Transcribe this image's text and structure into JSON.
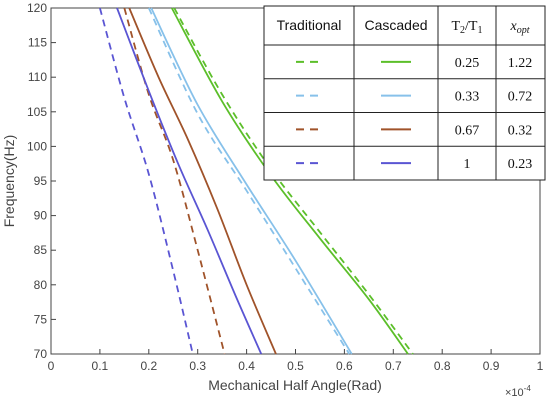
{
  "chart_data": {
    "type": "line",
    "xlabel": "Mechanical Half Angle(Rad)",
    "ylabel": "Frequency(Hz)",
    "x_multiplier": "×10",
    "x_multiplier_exp": "-4",
    "xlim": [
      0,
      1
    ],
    "ylim": [
      70,
      120
    ],
    "x_ticks": [
      "0",
      "0.1",
      "0.2",
      "0.3",
      "0.4",
      "0.5",
      "0.6",
      "0.7",
      "0.8",
      "0.9",
      "1"
    ],
    "y_ticks": [
      "70",
      "75",
      "80",
      "85",
      "90",
      "95",
      "100",
      "105",
      "110",
      "115",
      "120"
    ],
    "grid": false,
    "series": [
      {
        "group": "Traditional",
        "ratio": "0.25",
        "color": "#5cbf2a",
        "dash": true,
        "x": [
          0.252,
          0.35,
          0.45,
          0.55,
          0.65,
          0.74
        ],
        "y": [
          120,
          107.5,
          96.7,
          87.6,
          78.6,
          70
        ]
      },
      {
        "group": "Cascaded",
        "ratio": "0.25",
        "color": "#5cbf2a",
        "dash": false,
        "x": [
          0.247,
          0.35,
          0.45,
          0.55,
          0.65,
          0.73
        ],
        "y": [
          120,
          106.5,
          95.8,
          86.7,
          77.9,
          70
        ]
      },
      {
        "group": "Traditional",
        "ratio": "0.33",
        "color": "#87c1ea",
        "dash": true,
        "x": [
          0.2,
          0.3,
          0.4,
          0.5,
          0.61
        ],
        "y": [
          120,
          104.7,
          93.6,
          82.4,
          70
        ]
      },
      {
        "group": "Cascaded",
        "ratio": "0.33",
        "color": "#87c1ea",
        "dash": false,
        "x": [
          0.205,
          0.3,
          0.4,
          0.5,
          0.615
        ],
        "y": [
          120,
          106,
          94.5,
          83.5,
          70
        ]
      },
      {
        "group": "Traditional",
        "ratio": "0.67",
        "color": "#a0532a",
        "dash": true,
        "x": [
          0.15,
          0.2,
          0.25,
          0.3,
          0.355
        ],
        "y": [
          120,
          107.5,
          98,
          85,
          70
        ]
      },
      {
        "group": "Cascaded",
        "ratio": "0.67",
        "color": "#a0532a",
        "dash": false,
        "x": [
          0.16,
          0.22,
          0.28,
          0.34,
          0.4,
          0.46
        ],
        "y": [
          120,
          110,
          101,
          91,
          80,
          70
        ]
      },
      {
        "group": "Traditional",
        "ratio": "1",
        "color": "#5a55d3",
        "dash": true,
        "x": [
          0.1,
          0.15,
          0.2,
          0.25,
          0.29
        ],
        "y": [
          120,
          107,
          96,
          82,
          70
        ]
      },
      {
        "group": "Cascaded",
        "ratio": "1",
        "color": "#5a55d3",
        "dash": false,
        "x": [
          0.135,
          0.2,
          0.26,
          0.32,
          0.38,
          0.43
        ],
        "y": [
          120,
          108,
          97.5,
          88,
          78,
          70
        ]
      }
    ],
    "legend_table": {
      "headers": [
        "Traditional",
        "Cascaded",
        "T2/T1",
        "x_opt"
      ],
      "rows": [
        {
          "color": "#5cbf2a",
          "ratio": "0.25",
          "xopt": "1.22"
        },
        {
          "color": "#87c1ea",
          "ratio": "0.33",
          "xopt": "0.72"
        },
        {
          "color": "#a0532a",
          "ratio": "0.67",
          "xopt": "0.32"
        },
        {
          "color": "#5a55d3",
          "ratio": "1",
          "xopt": "0.23"
        }
      ]
    }
  }
}
